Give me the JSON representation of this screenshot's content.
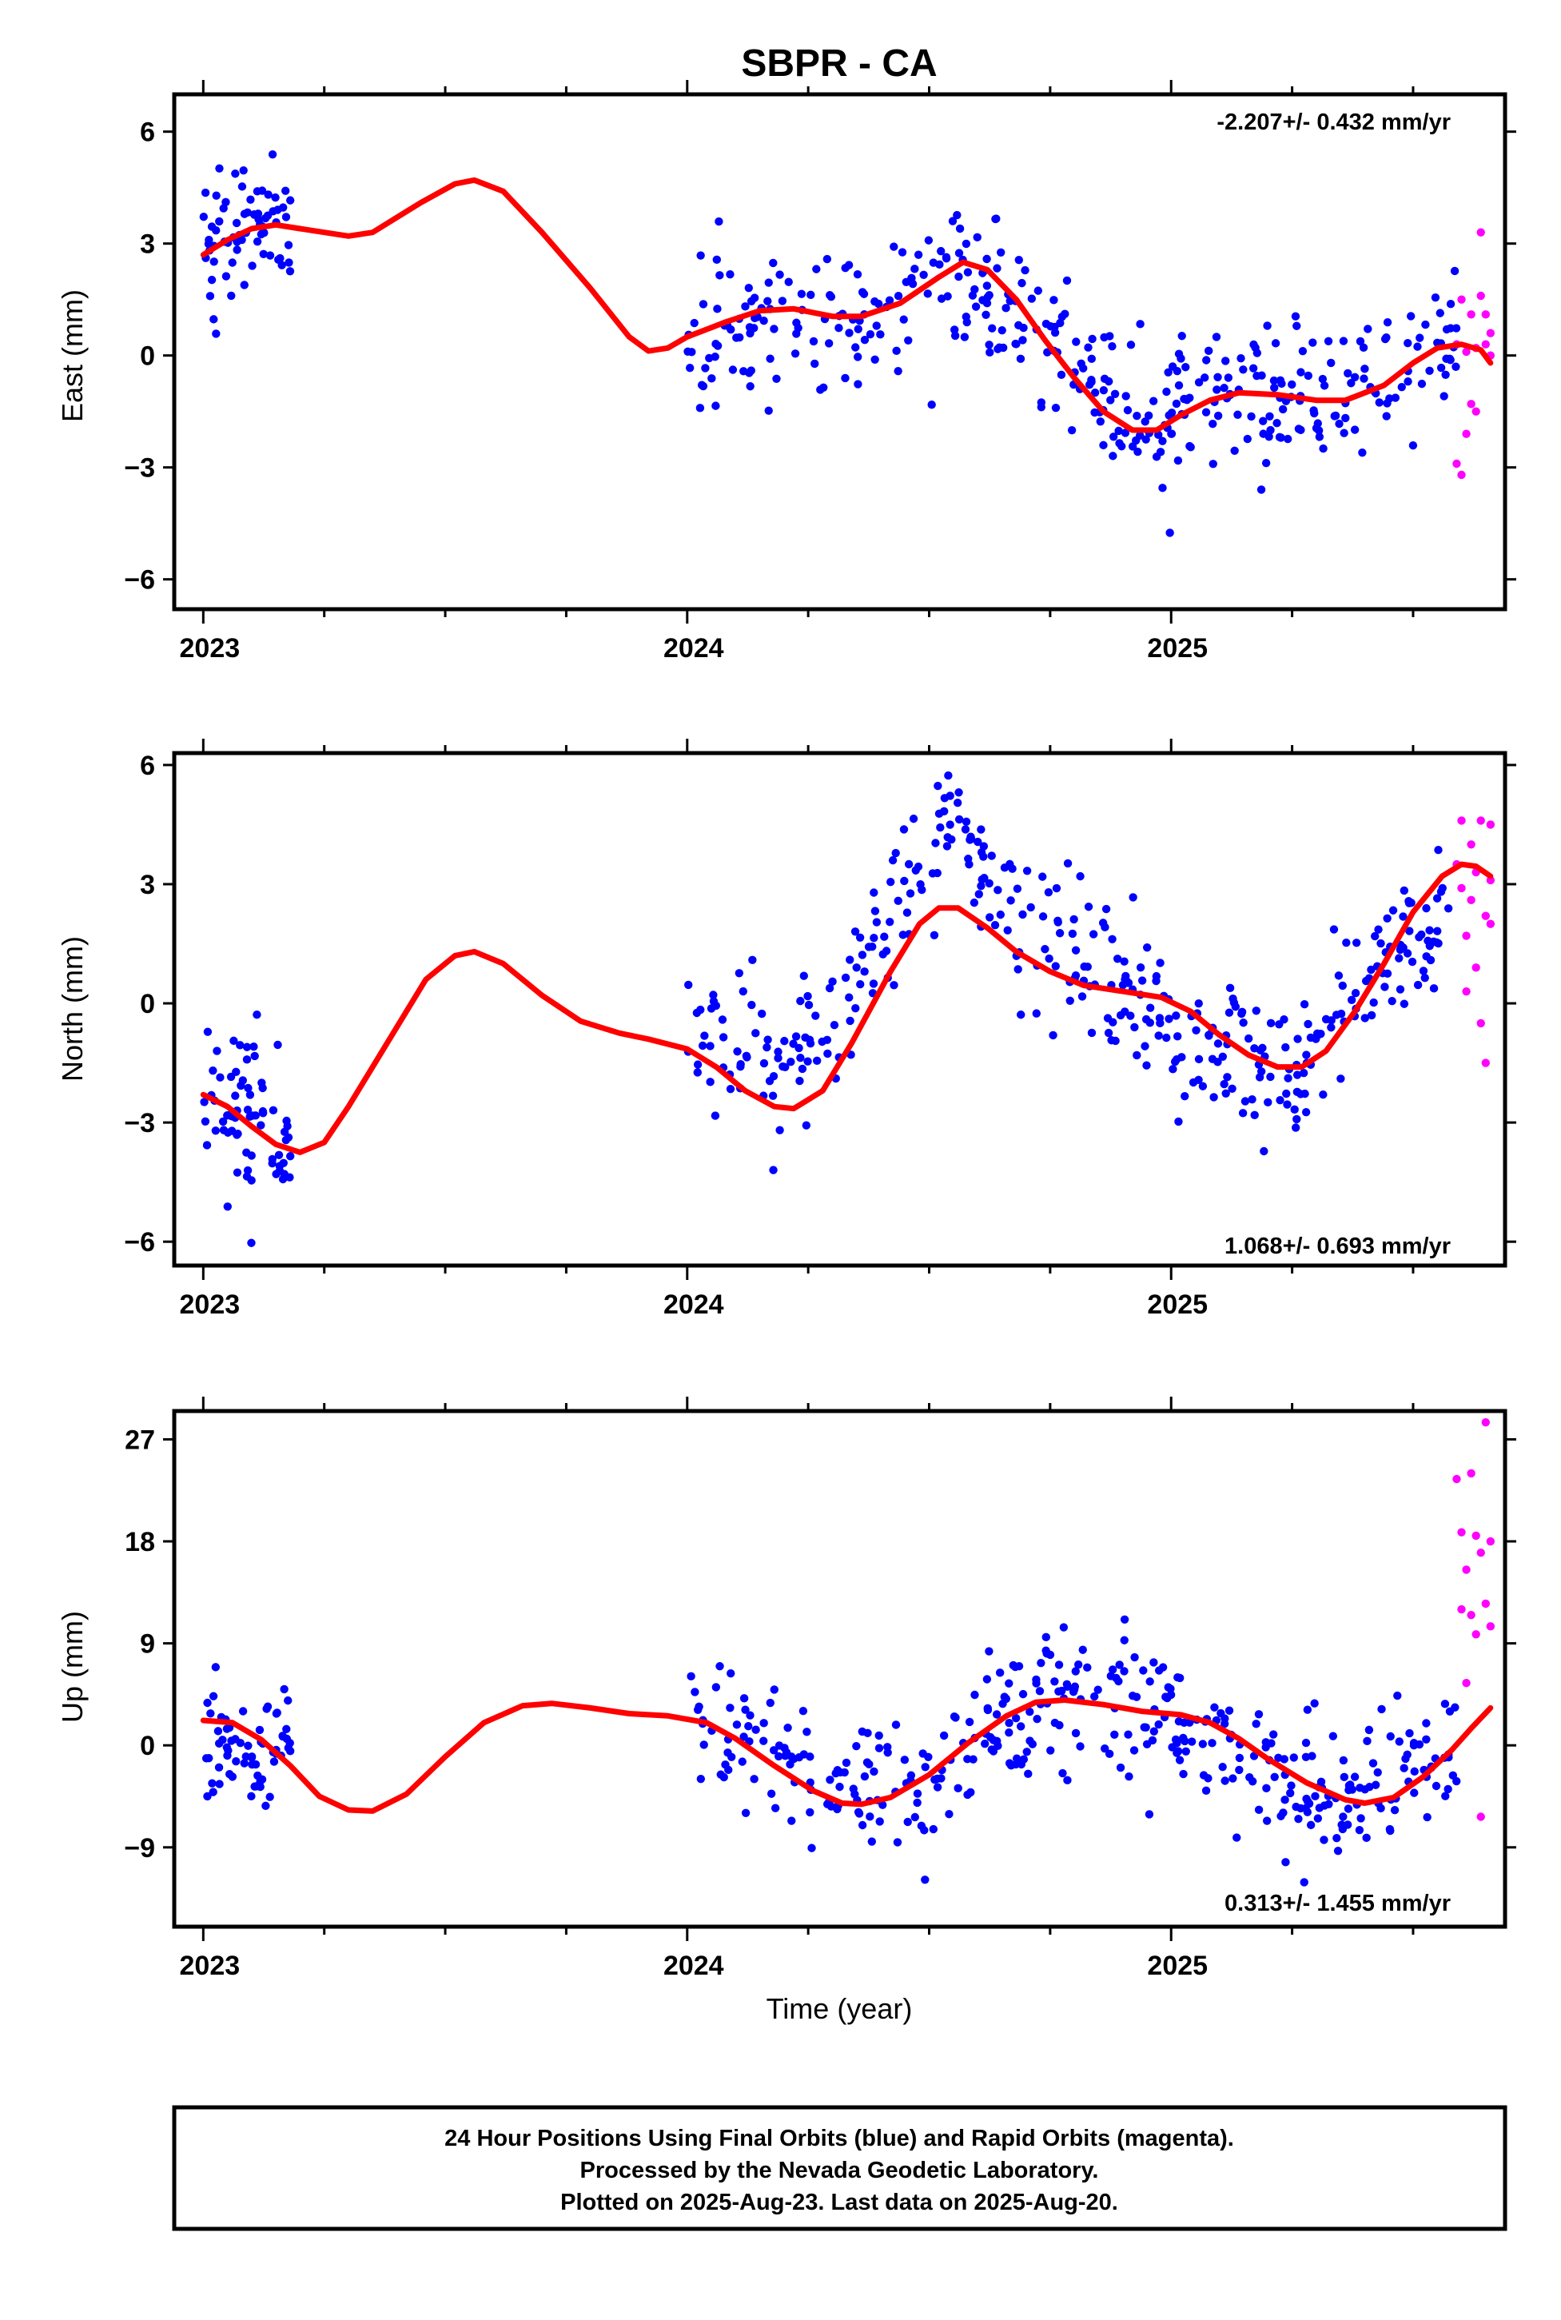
{
  "title": "SBPR - CA",
  "colors": {
    "final": "#0000ff",
    "rapid": "#ff00ff",
    "model": "#ff0000",
    "frame": "#000000"
  },
  "footer": {
    "line1": "24 Hour Positions Using Final Orbits (blue) and Rapid Orbits (magenta).",
    "line2": "Processed by the Nevada Geodetic Laboratory.",
    "line3": "Plotted on 2025-Aug-23. Last data on 2025-Aug-20."
  },
  "chart_data": [
    {
      "type": "scatter",
      "ylabel": "East (mm)",
      "xlabel": "",
      "rate": "-2.207+/- 0.432 mm/yr",
      "rate_position": "top-right",
      "xlim": [
        2022.94,
        2025.69
      ],
      "ylim": [
        -6.8,
        7.0
      ],
      "yticks": [
        -6,
        -3,
        0,
        3,
        6
      ],
      "xticks": [
        2023,
        2024,
        2025
      ],
      "xtick_labels": [
        "2023",
        "2024",
        "2025"
      ],
      "series": [
        {
          "name": "Final Orbits (blue)",
          "kind": "final",
          "segments": [
            {
              "x0": 2023.0,
              "x1": 2023.18,
              "center": [
                [
                  2023.0,
                  2.8
                ],
                [
                  2023.09,
                  3.6
                ],
                [
                  2023.18,
                  3.8
                ]
              ],
              "spread": 1.3,
              "count": 70
            },
            {
              "x0": 2024.0,
              "x1": 2024.6,
              "center": [
                [
                  2024.0,
                  0.4
                ],
                [
                  2024.2,
                  1.1
                ],
                [
                  2024.35,
                  0.9
                ],
                [
                  2024.6,
                  2.4
                ]
              ],
              "spread": 1.2,
              "count": 140
            },
            {
              "x0": 2024.6,
              "x1": 2025.59,
              "center": [
                [
                  2024.6,
                  2.2
                ],
                [
                  2024.78,
                  0.0
                ],
                [
                  2024.95,
                  -2.0
                ],
                [
                  2025.1,
                  -1.1
                ],
                [
                  2025.3,
                  -1.1
                ],
                [
                  2025.59,
                  0.6
                ]
              ],
              "spread": 1.2,
              "count": 260
            }
          ]
        },
        {
          "name": "Rapid Orbits (magenta)",
          "kind": "rapid",
          "points": [
            [
              2025.59,
              -2.9
            ],
            [
              2025.59,
              0.3
            ],
            [
              2025.6,
              -3.2
            ],
            [
              2025.6,
              1.5
            ],
            [
              2025.61,
              0.1
            ],
            [
              2025.61,
              -2.1
            ],
            [
              2025.62,
              -1.3
            ],
            [
              2025.62,
              1.1
            ],
            [
              2025.63,
              0.2
            ],
            [
              2025.63,
              -1.5
            ],
            [
              2025.64,
              3.3
            ],
            [
              2025.64,
              1.6
            ],
            [
              2025.65,
              1.1
            ],
            [
              2025.65,
              0.3
            ],
            [
              2025.66,
              0.0
            ],
            [
              2025.66,
              0.6
            ]
          ]
        }
      ],
      "model_curve": [
        [
          2023.0,
          2.7
        ],
        [
          2023.05,
          3.1
        ],
        [
          2023.1,
          3.4
        ],
        [
          2023.15,
          3.5
        ],
        [
          2023.2,
          3.4
        ],
        [
          2023.3,
          3.2
        ],
        [
          2023.35,
          3.3
        ],
        [
          2023.45,
          4.1
        ],
        [
          2023.52,
          4.6
        ],
        [
          2023.56,
          4.7
        ],
        [
          2023.62,
          4.4
        ],
        [
          2023.7,
          3.3
        ],
        [
          2023.8,
          1.8
        ],
        [
          2023.88,
          0.5
        ],
        [
          2023.92,
          0.12
        ],
        [
          2023.96,
          0.2
        ],
        [
          2024.0,
          0.5
        ],
        [
          2024.08,
          0.9
        ],
        [
          2024.15,
          1.2
        ],
        [
          2024.22,
          1.25
        ],
        [
          2024.3,
          1.05
        ],
        [
          2024.36,
          1.05
        ],
        [
          2024.44,
          1.4
        ],
        [
          2024.52,
          2.1
        ],
        [
          2024.57,
          2.5
        ],
        [
          2024.62,
          2.3
        ],
        [
          2024.68,
          1.5
        ],
        [
          2024.74,
          0.4
        ],
        [
          2024.8,
          -0.6
        ],
        [
          2024.86,
          -1.5
        ],
        [
          2024.92,
          -2.0
        ],
        [
          2024.97,
          -2.0
        ],
        [
          2025.02,
          -1.6
        ],
        [
          2025.08,
          -1.2
        ],
        [
          2025.14,
          -1.0
        ],
        [
          2025.22,
          -1.05
        ],
        [
          2025.3,
          -1.2
        ],
        [
          2025.36,
          -1.2
        ],
        [
          2025.44,
          -0.8
        ],
        [
          2025.5,
          -0.2
        ],
        [
          2025.55,
          0.2
        ],
        [
          2025.6,
          0.3
        ],
        [
          2025.64,
          0.15
        ],
        [
          2025.66,
          -0.2
        ]
      ]
    },
    {
      "type": "scatter",
      "ylabel": "North (mm)",
      "xlabel": "",
      "rate": "1.068+/- 0.693 mm/yr",
      "rate_position": "bottom-right",
      "xlim": [
        2022.94,
        2025.69
      ],
      "ylim": [
        -6.6,
        6.3
      ],
      "yticks": [
        -6,
        -3,
        0,
        3,
        6
      ],
      "xticks": [
        2023,
        2024,
        2025
      ],
      "xtick_labels": [
        "2023",
        "2024",
        "2025"
      ],
      "series": [
        {
          "name": "Final Orbits (blue)",
          "kind": "final",
          "segments": [
            {
              "x0": 2023.0,
              "x1": 2023.18,
              "center": [
                [
                  2023.0,
                  -2.0
                ],
                [
                  2023.09,
                  -2.8
                ],
                [
                  2023.18,
                  -3.5
                ]
              ],
              "spread": 1.4,
              "count": 70
            },
            {
              "x0": 2024.0,
              "x1": 2024.55,
              "center": [
                [
                  2024.0,
                  -0.6
                ],
                [
                  2024.2,
                  -1.4
                ],
                [
                  2024.35,
                  0.5
                ],
                [
                  2024.55,
                  4.5
                ]
              ],
              "spread": 1.4,
              "count": 130
            },
            {
              "x0": 2024.55,
              "x1": 2025.59,
              "center": [
                [
                  2024.55,
                  4.6
                ],
                [
                  2024.7,
                  1.8
                ],
                [
                  2024.9,
                  0.2
                ],
                [
                  2025.1,
                  -1.2
                ],
                [
                  2025.25,
                  -1.8
                ],
                [
                  2025.4,
                  0.8
                ],
                [
                  2025.59,
                  2.6
                ]
              ],
              "spread": 1.3,
              "count": 270
            }
          ]
        },
        {
          "name": "Rapid Orbits (magenta)",
          "kind": "rapid",
          "points": [
            [
              2025.59,
              3.5
            ],
            [
              2025.6,
              4.6
            ],
            [
              2025.6,
              2.9
            ],
            [
              2025.61,
              1.7
            ],
            [
              2025.61,
              0.3
            ],
            [
              2025.62,
              4.0
            ],
            [
              2025.62,
              2.6
            ],
            [
              2025.63,
              3.3
            ],
            [
              2025.63,
              0.9
            ],
            [
              2025.64,
              -0.5
            ],
            [
              2025.64,
              4.6
            ],
            [
              2025.65,
              2.2
            ],
            [
              2025.65,
              -1.5
            ],
            [
              2025.66,
              4.5
            ],
            [
              2025.66,
              3.1
            ],
            [
              2025.66,
              2.0
            ]
          ]
        }
      ],
      "model_curve": [
        [
          2023.0,
          -2.3
        ],
        [
          2023.05,
          -2.6
        ],
        [
          2023.1,
          -3.1
        ],
        [
          2023.15,
          -3.55
        ],
        [
          2023.2,
          -3.75
        ],
        [
          2023.25,
          -3.5
        ],
        [
          2023.3,
          -2.6
        ],
        [
          2023.38,
          -1.0
        ],
        [
          2023.46,
          0.6
        ],
        [
          2023.52,
          1.2
        ],
        [
          2023.56,
          1.3
        ],
        [
          2023.62,
          1.0
        ],
        [
          2023.7,
          0.2
        ],
        [
          2023.78,
          -0.45
        ],
        [
          2023.86,
          -0.75
        ],
        [
          2023.92,
          -0.9
        ],
        [
          2024.0,
          -1.15
        ],
        [
          2024.06,
          -1.6
        ],
        [
          2024.12,
          -2.2
        ],
        [
          2024.18,
          -2.6
        ],
        [
          2024.22,
          -2.65
        ],
        [
          2024.28,
          -2.2
        ],
        [
          2024.34,
          -1.0
        ],
        [
          2024.42,
          0.8
        ],
        [
          2024.48,
          2.0
        ],
        [
          2024.52,
          2.4
        ],
        [
          2024.56,
          2.4
        ],
        [
          2024.62,
          1.9
        ],
        [
          2024.68,
          1.3
        ],
        [
          2024.75,
          0.8
        ],
        [
          2024.82,
          0.45
        ],
        [
          2024.9,
          0.3
        ],
        [
          2024.98,
          0.15
        ],
        [
          2025.04,
          -0.2
        ],
        [
          2025.1,
          -0.8
        ],
        [
          2025.16,
          -1.3
        ],
        [
          2025.22,
          -1.6
        ],
        [
          2025.27,
          -1.6
        ],
        [
          2025.32,
          -1.2
        ],
        [
          2025.38,
          -0.2
        ],
        [
          2025.44,
          1.0
        ],
        [
          2025.5,
          2.3
        ],
        [
          2025.56,
          3.2
        ],
        [
          2025.6,
          3.5
        ],
        [
          2025.63,
          3.45
        ],
        [
          2025.66,
          3.2
        ]
      ]
    },
    {
      "type": "scatter",
      "ylabel": "Up (mm)",
      "xlabel": "Time (year)",
      "rate": "0.313+/- 1.455 mm/yr",
      "rate_position": "bottom-right",
      "xlim": [
        2022.94,
        2025.69
      ],
      "ylim": [
        -16,
        29.5
      ],
      "yticks": [
        -9,
        0,
        9,
        18,
        27
      ],
      "xticks": [
        2023,
        2024,
        2025
      ],
      "xtick_labels": [
        "2023",
        "2024",
        "2025"
      ],
      "series": [
        {
          "name": "Final Orbits (blue)",
          "kind": "final",
          "segments": [
            {
              "x0": 2023.0,
              "x1": 2023.18,
              "center": [
                [
                  2023.0,
                  0.8
                ],
                [
                  2023.09,
                  0.0
                ],
                [
                  2023.18,
                  -1.0
                ]
              ],
              "spread": 3.5,
              "count": 65
            },
            {
              "x0": 2024.0,
              "x1": 2024.55,
              "center": [
                [
                  2024.0,
                  3.5
                ],
                [
                  2024.2,
                  -1.0
                ],
                [
                  2024.38,
                  -4.5
                ],
                [
                  2024.55,
                  -2.0
                ]
              ],
              "spread": 4.2,
              "count": 120
            },
            {
              "x0": 2024.55,
              "x1": 2025.59,
              "center": [
                [
                  2024.55,
                  0.0
                ],
                [
                  2024.75,
                  4.5
                ],
                [
                  2024.95,
                  4.0
                ],
                [
                  2025.15,
                  -2.0
                ],
                [
                  2025.35,
                  -5.0
                ],
                [
                  2025.59,
                  0.5
                ]
              ],
              "spread": 4.0,
              "count": 280
            }
          ]
        },
        {
          "name": "Rapid Orbits (magenta)",
          "kind": "rapid",
          "points": [
            [
              2025.59,
              23.5
            ],
            [
              2025.6,
              18.8
            ],
            [
              2025.6,
              12.0
            ],
            [
              2025.61,
              15.5
            ],
            [
              2025.61,
              5.5
            ],
            [
              2025.62,
              24.0
            ],
            [
              2025.62,
              11.5
            ],
            [
              2025.63,
              18.5
            ],
            [
              2025.63,
              9.8
            ],
            [
              2025.64,
              -6.3
            ],
            [
              2025.64,
              17.0
            ],
            [
              2025.65,
              12.5
            ],
            [
              2025.65,
              28.5
            ],
            [
              2025.66,
              10.5
            ],
            [
              2025.66,
              18.0
            ]
          ]
        }
      ],
      "model_curve": [
        [
          2023.0,
          2.2
        ],
        [
          2023.06,
          2.0
        ],
        [
          2023.12,
          0.5
        ],
        [
          2023.18,
          -1.8
        ],
        [
          2023.24,
          -4.5
        ],
        [
          2023.3,
          -5.7
        ],
        [
          2023.35,
          -5.8
        ],
        [
          2023.42,
          -4.3
        ],
        [
          2023.5,
          -1.0
        ],
        [
          2023.58,
          2.0
        ],
        [
          2023.66,
          3.5
        ],
        [
          2023.72,
          3.7
        ],
        [
          2023.8,
          3.3
        ],
        [
          2023.88,
          2.8
        ],
        [
          2023.96,
          2.6
        ],
        [
          2024.04,
          2.0
        ],
        [
          2024.1,
          0.6
        ],
        [
          2024.18,
          -1.8
        ],
        [
          2024.26,
          -4.0
        ],
        [
          2024.32,
          -5.1
        ],
        [
          2024.36,
          -5.2
        ],
        [
          2024.42,
          -4.6
        ],
        [
          2024.5,
          -2.6
        ],
        [
          2024.58,
          0.2
        ],
        [
          2024.66,
          2.6
        ],
        [
          2024.72,
          3.8
        ],
        [
          2024.78,
          4.0
        ],
        [
          2024.86,
          3.6
        ],
        [
          2024.94,
          3.0
        ],
        [
          2025.02,
          2.7
        ],
        [
          2025.08,
          2.0
        ],
        [
          2025.14,
          0.6
        ],
        [
          2025.2,
          -1.2
        ],
        [
          2025.28,
          -3.3
        ],
        [
          2025.36,
          -4.8
        ],
        [
          2025.4,
          -5.1
        ],
        [
          2025.46,
          -4.6
        ],
        [
          2025.52,
          -2.8
        ],
        [
          2025.58,
          -0.4
        ],
        [
          2025.62,
          1.5
        ],
        [
          2025.66,
          3.3
        ]
      ]
    }
  ]
}
